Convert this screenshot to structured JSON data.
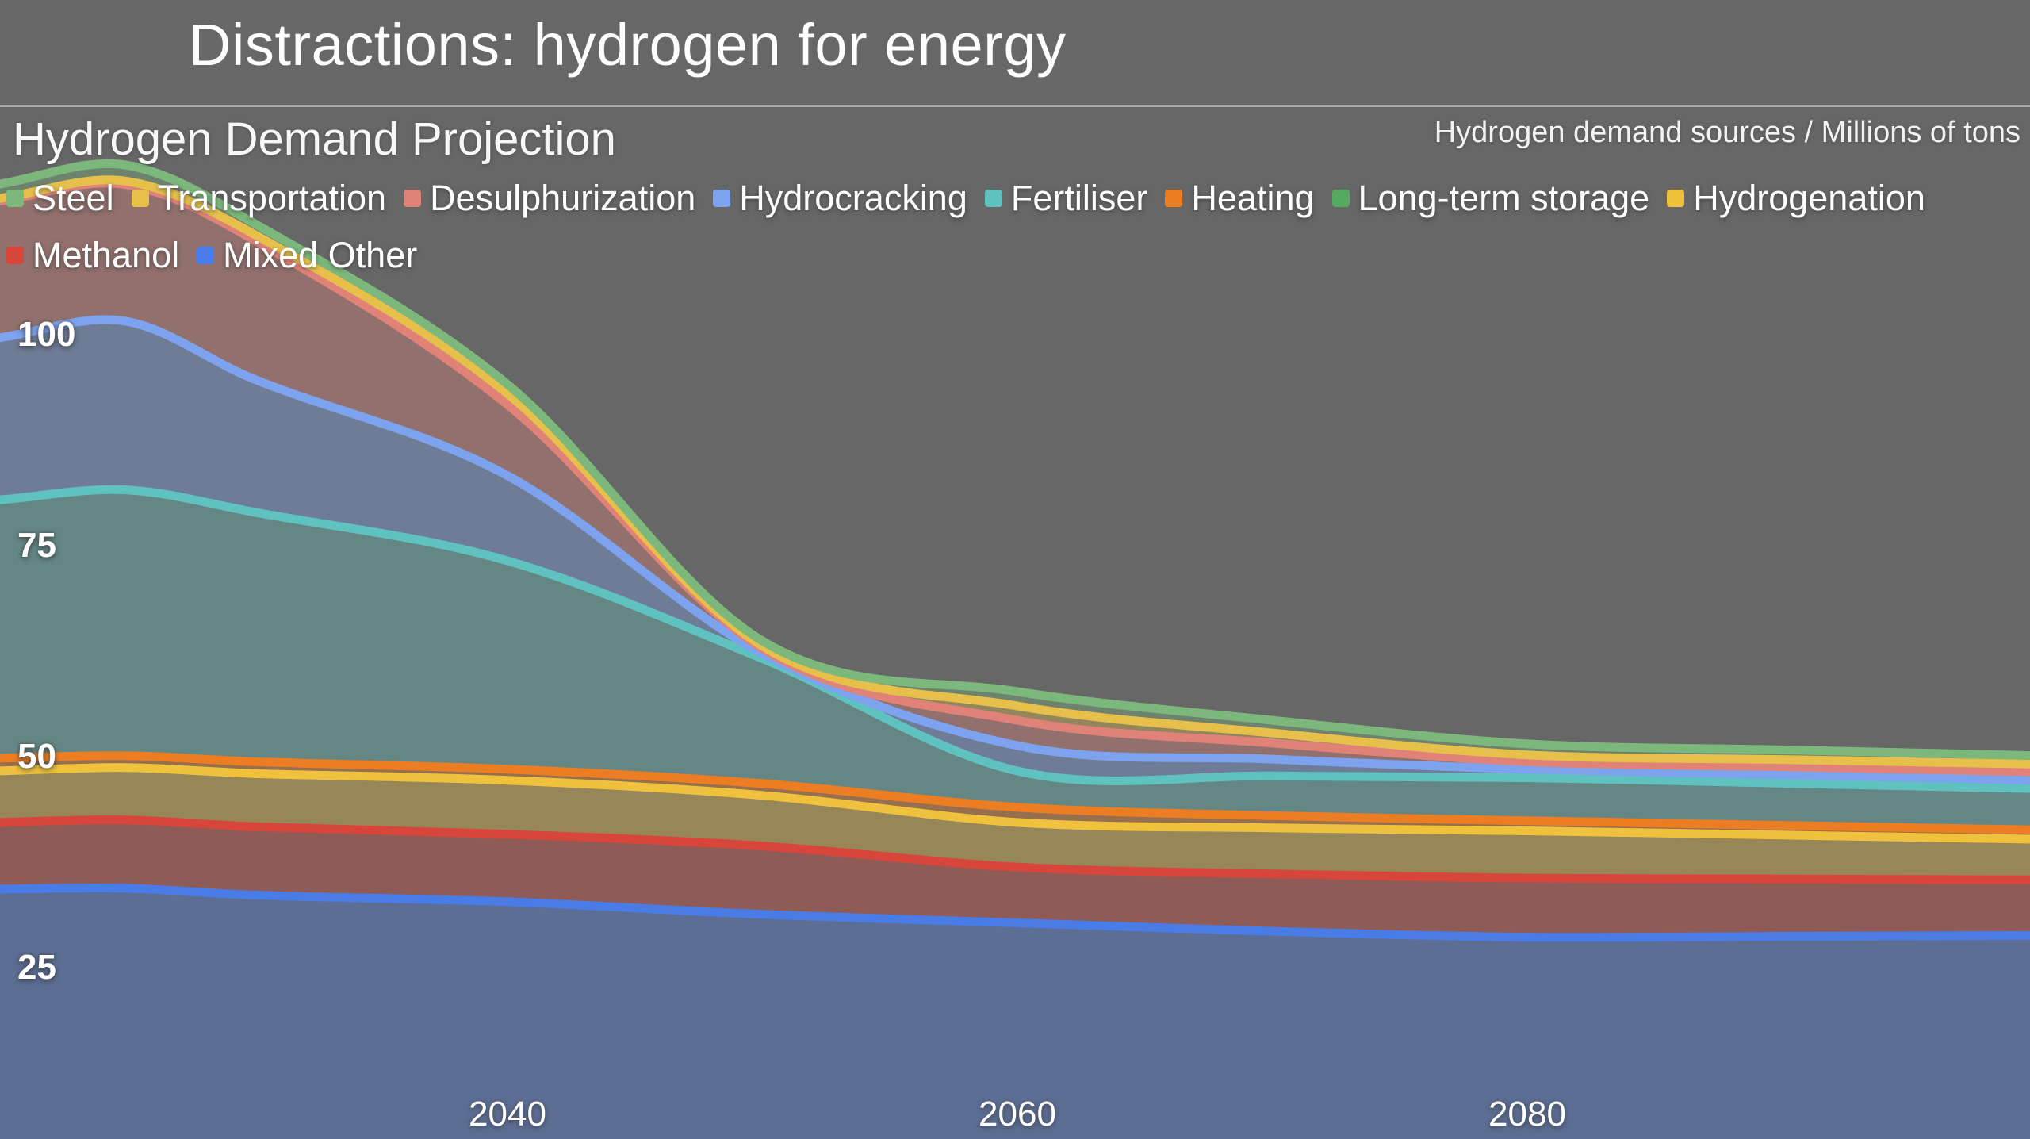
{
  "header": {
    "title": "Distractions: hydrogen for energy"
  },
  "chart": {
    "title": "Hydrogen Demand Projection",
    "axis_label": "Hydrogen demand sources / Millions of tons"
  },
  "chart_data": {
    "type": "area",
    "stacking": "normal",
    "title": "Hydrogen Demand Projection",
    "unit_label": "Hydrogen demand sources / Millions of tons",
    "xlabel": "",
    "ylabel": "Millions of tons",
    "x": [
      2020,
      2025,
      2030,
      2040,
      2050,
      2060,
      2070,
      2080,
      2090,
      2100
    ],
    "xlim": [
      2020,
      2100
    ],
    "ylim": [
      0,
      135
    ],
    "xticks": [
      "2040",
      "2060",
      "2080"
    ],
    "xtick_values": [
      2040,
      2060,
      2080
    ],
    "yticks": [
      "100",
      "75",
      "50",
      "25"
    ],
    "ytick_values": [
      100,
      75,
      50,
      25
    ],
    "grid": false,
    "legend_position": "top-left",
    "legend_rows": [
      8,
      2
    ],
    "background_color": "#676767",
    "fill_opacity": 0.35,
    "stroke_width": 11,
    "stack_order_note": "stacked bottom-to-top in reverse legend order (Mixed Other at bottom, Steel on top)",
    "series": [
      {
        "name": "Steel",
        "color": "#7cb87c",
        "values": [
          1.7,
          1.9,
          1.3,
          1.1,
          0.6,
          1.7,
          1.5,
          1.3,
          1.15,
          1.0
        ]
      },
      {
        "name": "Transportation",
        "color": "#e6c04a",
        "values": [
          0.3,
          0.4,
          0.7,
          1.3,
          0.3,
          1.7,
          1.2,
          0.8,
          0.85,
          0.9
        ]
      },
      {
        "name": "Desulphurization",
        "color": "#e08278",
        "values": [
          16.2,
          16.2,
          16.5,
          8.4,
          0.6,
          3.0,
          1.9,
          0.9,
          0.95,
          1.0
        ]
      },
      {
        "name": "Hydrocracking",
        "color": "#7da2ee",
        "values": [
          19.2,
          20.0,
          15.8,
          10.1,
          0.6,
          3.0,
          2.0,
          1.0,
          1.0,
          1.0
        ]
      },
      {
        "name": "Fertiliser",
        "color": "#5fc2bf",
        "values": [
          30.6,
          31.5,
          29.6,
          24.7,
          14.8,
          4.3,
          4.7,
          5.1,
          5.0,
          4.9
        ]
      },
      {
        "name": "Heating",
        "color": "#ed7d23",
        "values": [
          1.4,
          1.3,
          1.3,
          1.2,
          1.3,
          1.7,
          1.35,
          1.1,
          1.05,
          1.0
        ]
      },
      {
        "name": "Long-term storage",
        "color": "#55aa5f",
        "values": [
          0.1,
          0.1,
          0.1,
          0.1,
          0.1,
          0.1,
          0.1,
          0.1,
          0.1,
          0.1
        ]
      },
      {
        "name": "Hydrogenation",
        "color": "#f0c13d",
        "values": [
          6.1,
          6.2,
          6.3,
          6.4,
          6.0,
          5.3,
          5.45,
          5.6,
          5.2,
          4.8
        ]
      },
      {
        "name": "Methanol",
        "color": "#d8453a",
        "values": [
          7.9,
          8.1,
          8.1,
          8.0,
          8.1,
          6.6,
          6.8,
          7.0,
          6.8,
          6.6
        ]
      },
      {
        "name": "Mixed Other",
        "color": "#4a7ce8",
        "values": [
          34.5,
          34.6,
          33.8,
          33.0,
          31.5,
          30.5,
          29.5,
          28.8,
          28.9,
          29.0
        ]
      }
    ]
  }
}
